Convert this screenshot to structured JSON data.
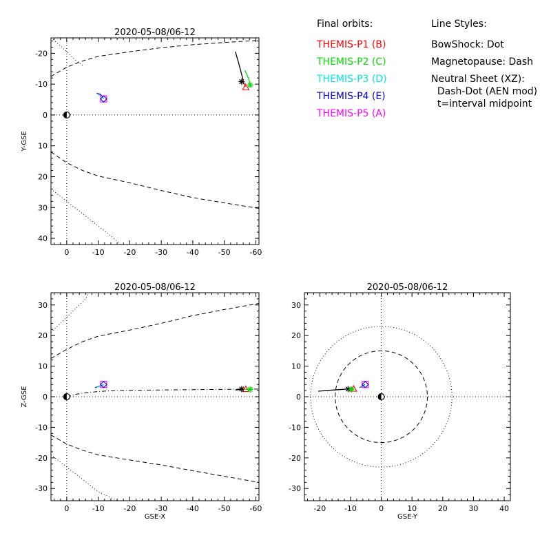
{
  "legend": {
    "heading": "Final orbits:",
    "probes": [
      {
        "label": "THEMIS-P1 (B)",
        "color": "#ff0000"
      },
      {
        "label": "THEMIS-P2 (C)",
        "color": "#00dd00"
      },
      {
        "label": "THEMIS-P3 (D)",
        "color": "#00e5e5"
      },
      {
        "label": "THEMIS-P4 (E)",
        "color": "#0000dd"
      },
      {
        "label": "THEMIS-P5 (A)",
        "color": "#ff00ff"
      }
    ]
  },
  "line_styles": {
    "heading": "Line Styles:",
    "lines": [
      "BowShock: Dot",
      "Magnetopause: Dash",
      "Neutral Sheet (XZ):",
      "  Dash-Dot (AEN mod)",
      "  t=interval midpoint"
    ]
  },
  "chart_data": [
    {
      "type": "line",
      "title": "2020-05-08/06-12",
      "xlabel": "",
      "ylabel": "Y-GSE",
      "xlim": [
        5,
        -61
      ],
      "ylim": [
        42,
        -25
      ],
      "xticks": [
        0,
        -10,
        -20,
        -30,
        -40,
        -50,
        -60
      ],
      "yticks": [
        -20,
        -10,
        0,
        10,
        20,
        30,
        40
      ],
      "earth": [
        0,
        0
      ],
      "series": [
        {
          "style": "dotted",
          "color": "#000000",
          "x": [
            5,
            2,
            0,
            -2,
            -5
          ],
          "y": [
            -25,
            -22.5,
            -20.5,
            -18.5,
            -16
          ]
        },
        {
          "style": "dotted",
          "color": "#000000",
          "x": [
            5,
            0,
            -5,
            -10,
            -15,
            -17
          ],
          "y": [
            24,
            28,
            32,
            36,
            40,
            42
          ]
        },
        {
          "style": "dashed",
          "color": "#000000",
          "x": [
            5,
            0,
            -5,
            -10,
            -20,
            -30,
            -40,
            -50,
            -61
          ],
          "y": [
            -12.5,
            -15.5,
            -17.5,
            -19,
            -20.5,
            -21.8,
            -22.8,
            -23.5,
            -24.2
          ]
        },
        {
          "style": "dashed",
          "color": "#000000",
          "x": [
            5,
            0,
            -5,
            -10,
            -20,
            -30,
            -40,
            -50,
            -61
          ],
          "y": [
            12,
            15.5,
            18,
            19.8,
            22,
            24.5,
            26.8,
            28.5,
            30.3
          ]
        },
        {
          "style": "dotted",
          "color": "#000000",
          "x": [
            5,
            -61
          ],
          "y": [
            0,
            0
          ]
        },
        {
          "style": "dotted",
          "color": "#000000",
          "x": [
            0,
            0
          ],
          "y": [
            42,
            -25
          ]
        },
        {
          "style": "solid",
          "color": "#000000",
          "x": [
            -53.5,
            -54.5,
            -55.3,
            -55.8,
            -56
          ],
          "y": [
            -20.5,
            -17,
            -14,
            -12,
            -11
          ]
        },
        {
          "style": "solid",
          "color": "#ff0000",
          "x": [
            -56,
            -56.3,
            -56.8
          ],
          "y": [
            -11,
            -10,
            -9.2
          ]
        },
        {
          "style": "solid",
          "color": "#00dd00",
          "x": [
            -56.5,
            -57.2,
            -57.8,
            -58.2
          ],
          "y": [
            -14.5,
            -13,
            -11.5,
            -10
          ]
        },
        {
          "style": "solid",
          "color": "#0000dd",
          "x": [
            -9.5,
            -10.5,
            -11.2,
            -11.7
          ],
          "y": [
            -7,
            -6.8,
            -6.2,
            -5.3
          ]
        },
        {
          "style": "solid",
          "color": "#00e5e5",
          "x": [
            -10,
            -11,
            -11.6
          ],
          "y": [
            -6.5,
            -6.2,
            -5.4
          ]
        }
      ],
      "markers": [
        {
          "kind": "star",
          "color": "#000000",
          "x": -55.5,
          "y": -10.8
        },
        {
          "kind": "triangle",
          "color": "#ff0000",
          "x": -56.8,
          "y": -9
        },
        {
          "kind": "star",
          "color": "#00dd00",
          "x": -58.2,
          "y": -9.7
        },
        {
          "kind": "square",
          "color": "#ff00ff",
          "x": -11.7,
          "y": -5.2
        },
        {
          "kind": "diamond",
          "color": "#0000dd",
          "x": -11.7,
          "y": -5.2
        }
      ]
    },
    {
      "type": "line",
      "title": "2020-05-08/06-12",
      "xlabel": "GSE-X",
      "ylabel": "Z-GSE",
      "xlim": [
        5,
        -61
      ],
      "ylim": [
        -34,
        34
      ],
      "xticks": [
        0,
        -10,
        -20,
        -30,
        -40,
        -50,
        -60
      ],
      "yticks": [
        30,
        20,
        10,
        0,
        -10,
        -20,
        -30
      ],
      "earth": [
        0,
        0
      ],
      "series": [
        {
          "style": "dotted",
          "color": "#000000",
          "x": [
            5,
            2,
            0,
            -3,
            -6,
            -7
          ],
          "y": [
            21,
            24,
            26,
            29,
            32,
            34
          ]
        },
        {
          "style": "dotted",
          "color": "#000000",
          "x": [
            5,
            0,
            -5,
            -10,
            -16,
            -17
          ],
          "y": [
            -19,
            -23,
            -27,
            -31,
            -34,
            -34
          ]
        },
        {
          "style": "dashed",
          "color": "#000000",
          "x": [
            5,
            0,
            -5,
            -10,
            -20,
            -30,
            -40,
            -50,
            -61
          ],
          "y": [
            12.5,
            15.5,
            18,
            19.8,
            21.8,
            24,
            26.5,
            28.5,
            30.5
          ]
        },
        {
          "style": "dashed",
          "color": "#000000",
          "x": [
            5,
            0,
            -5,
            -10,
            -20,
            -30,
            -40,
            -50,
            -61
          ],
          "y": [
            -12.5,
            -15.5,
            -17.5,
            -19,
            -20.7,
            -22.3,
            -24.2,
            -26,
            -28
          ]
        },
        {
          "style": "dotted",
          "color": "#000000",
          "x": [
            5,
            -61
          ],
          "y": [
            0,
            0
          ]
        },
        {
          "style": "dotted",
          "color": "#000000",
          "x": [
            0,
            0
          ],
          "y": [
            34,
            -34
          ]
        },
        {
          "style": "dashdot",
          "color": "#000000",
          "x": [
            0,
            -3,
            -6,
            -10,
            -15,
            -20,
            -30,
            -40,
            -50,
            -61
          ],
          "y": [
            0,
            0.8,
            1.3,
            1.7,
            2,
            2.1,
            2.2,
            2.3,
            2.4,
            2.5
          ]
        },
        {
          "style": "solid",
          "color": "#000000",
          "x": [
            -53.5,
            -54.5,
            -55.5,
            -56.2
          ],
          "y": [
            2.2,
            2.3,
            2.4,
            2.5
          ]
        },
        {
          "style": "solid",
          "color": "#00dd00",
          "x": [
            -56.2,
            -57.2,
            -58.2
          ],
          "y": [
            2.5,
            2.4,
            2.4
          ]
        },
        {
          "style": "solid",
          "color": "#0000dd",
          "x": [
            -9,
            -10.2,
            -11.2,
            -11.7
          ],
          "y": [
            3,
            3.4,
            3.7,
            4
          ]
        },
        {
          "style": "solid",
          "color": "#00e5e5",
          "x": [
            -9.5,
            -10.8,
            -11.6
          ],
          "y": [
            3.1,
            3.5,
            3.9
          ]
        }
      ],
      "markers": [
        {
          "kind": "star",
          "color": "#000000",
          "x": -55.5,
          "y": 2.5
        },
        {
          "kind": "triangle",
          "color": "#ff0000",
          "x": -56.8,
          "y": 2.5
        },
        {
          "kind": "star",
          "color": "#00dd00",
          "x": -58.2,
          "y": 2.4
        },
        {
          "kind": "square",
          "color": "#ff00ff",
          "x": -11.7,
          "y": 4
        },
        {
          "kind": "diamond",
          "color": "#0000dd",
          "x": -11.7,
          "y": 4
        }
      ]
    },
    {
      "type": "line",
      "title": "2020-05-08/06-12",
      "xlabel": "GSE-Y",
      "ylabel": "",
      "xlim": [
        -25,
        42
      ],
      "ylim": [
        -34,
        34
      ],
      "xticks": [
        -20,
        -10,
        0,
        10,
        20,
        30,
        40
      ],
      "yticks": [
        30,
        20,
        10,
        0,
        -10,
        -20,
        -30
      ],
      "earth": [
        0,
        0
      ],
      "circles": [
        {
          "style": "dotted",
          "r": 23
        },
        {
          "style": "dashed",
          "r": 15
        }
      ],
      "series": [
        {
          "style": "dotted",
          "color": "#000000",
          "x": [
            -25,
            42
          ],
          "y": [
            0,
            0
          ]
        },
        {
          "style": "dotted",
          "color": "#000000",
          "x": [
            0,
            0
          ],
          "y": [
            34,
            -34
          ]
        },
        {
          "style": "solid",
          "color": "#000000",
          "x": [
            -20.5,
            -17,
            -14,
            -11
          ],
          "y": [
            1.8,
            2.1,
            2.3,
            2.5
          ]
        },
        {
          "style": "solid",
          "color": "#ff0000",
          "x": [
            -11,
            -10,
            -9
          ],
          "y": [
            2.5,
            2.6,
            2.7
          ]
        },
        {
          "style": "solid",
          "color": "#00dd00",
          "x": [
            -10.5,
            -9.8,
            -9.2
          ],
          "y": [
            2.5,
            2.6,
            2.7
          ]
        },
        {
          "style": "solid",
          "color": "#0000dd",
          "x": [
            -7,
            -6.2,
            -5.3
          ],
          "y": [
            3,
            3.5,
            4
          ]
        },
        {
          "style": "solid",
          "color": "#00e5e5",
          "x": [
            -6.8,
            -6,
            -5.4
          ],
          "y": [
            3,
            3.4,
            3.9
          ]
        }
      ],
      "markers": [
        {
          "kind": "star",
          "color": "#000000",
          "x": -10.8,
          "y": 2.5
        },
        {
          "kind": "triangle",
          "color": "#ff0000",
          "x": -9,
          "y": 2.6
        },
        {
          "kind": "star",
          "color": "#00dd00",
          "x": -9.7,
          "y": 2.4
        },
        {
          "kind": "square",
          "color": "#ff00ff",
          "x": -5.2,
          "y": 4
        },
        {
          "kind": "diamond",
          "color": "#0000dd",
          "x": -5.2,
          "y": 4
        }
      ]
    }
  ]
}
